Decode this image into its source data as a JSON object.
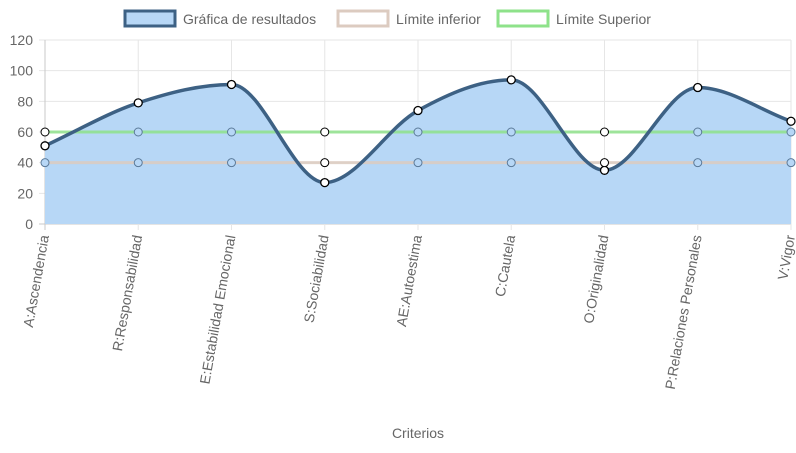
{
  "chart_data": {
    "type": "line",
    "categories": [
      "A:Ascendencia",
      "R:Responsabilidad",
      "E:Estabilidad Emocional",
      "S:Sociabilidad",
      "AE:Autoestima",
      "C:Cautela",
      "O:Originalidad",
      "P:Relaciones Personales",
      "V:Vigor"
    ],
    "series": [
      {
        "name": "Gráfica de resultados",
        "values": [
          51,
          79,
          91,
          27,
          74,
          94,
          35,
          89,
          67
        ],
        "color": "#3d6184",
        "fill": "#b7d7f6",
        "filled": true
      },
      {
        "name": "Límite inferior",
        "values": [
          40,
          40,
          40,
          40,
          40,
          40,
          40,
          40,
          40
        ],
        "color": "#dccbc0",
        "filled": false
      },
      {
        "name": "Límite Superior",
        "values": [
          60,
          60,
          60,
          60,
          60,
          60,
          60,
          60,
          60
        ],
        "color": "#8ee28a",
        "filled": false
      }
    ],
    "xlabel": "Criterios",
    "ylabel": "",
    "ylim": [
      0,
      120
    ],
    "yticks": [
      0,
      20,
      40,
      60,
      80,
      100,
      120
    ],
    "grid": true,
    "legend_position": "top-center"
  }
}
